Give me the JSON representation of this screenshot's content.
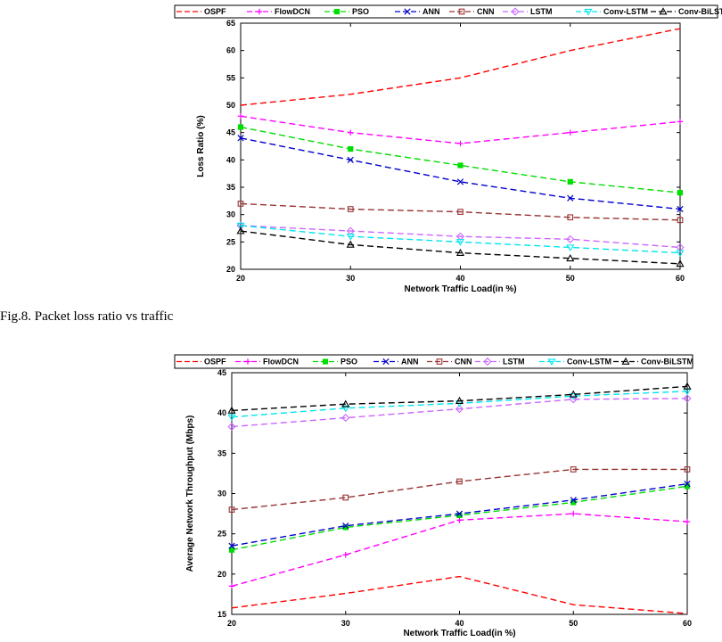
{
  "caption": "Fig.8. Packet loss ratio vs traffic",
  "series_styles": [
    {
      "name": "OSPF",
      "color": "#ff0000",
      "marker": "none"
    },
    {
      "name": "FlowDCN",
      "color": "#ff00ff",
      "marker": "plus"
    },
    {
      "name": "PSO",
      "color": "#00dd00",
      "marker": "square-filled"
    },
    {
      "name": "ANN",
      "color": "#0000cc",
      "marker": "x"
    },
    {
      "name": "CNN",
      "color": "#993333",
      "marker": "square"
    },
    {
      "name": "LSTM",
      "color": "#cc66ff",
      "marker": "diamond"
    },
    {
      "name": "Conv-LSTM",
      "color": "#00e5ee",
      "marker": "triangle-down"
    },
    {
      "name": "Conv-BiLSTM",
      "color": "#000000",
      "marker": "triangle"
    }
  ],
  "chart_data": [
    {
      "type": "line",
      "title": "",
      "xlabel": "Network Traffic Load(in %)",
      "ylabel": "Loss Ratio (%)",
      "x": [
        20,
        30,
        40,
        50,
        60
      ],
      "xlim": [
        20,
        60
      ],
      "ylim": [
        20,
        65
      ],
      "xticks": [
        "20",
        "30",
        "40",
        "50",
        "60"
      ],
      "yticks": [
        "20",
        "25",
        "30",
        "35",
        "40",
        "45",
        "50",
        "55",
        "60",
        "65"
      ],
      "ytick_values": [
        20,
        25,
        30,
        35,
        40,
        45,
        50,
        55,
        60,
        65
      ],
      "grid": false,
      "legend": "top",
      "series": [
        {
          "name": "OSPF",
          "values": [
            50,
            52,
            55,
            60,
            64
          ]
        },
        {
          "name": "FlowDCN",
          "values": [
            48,
            45,
            43,
            45,
            47
          ]
        },
        {
          "name": "PSO",
          "values": [
            46,
            42,
            39,
            36,
            34
          ]
        },
        {
          "name": "ANN",
          "values": [
            44,
            40,
            36,
            33,
            31
          ]
        },
        {
          "name": "CNN",
          "values": [
            32,
            31,
            30.5,
            29.5,
            29
          ]
        },
        {
          "name": "LSTM",
          "values": [
            28,
            27,
            26,
            25.5,
            24
          ]
        },
        {
          "name": "Conv-LSTM",
          "values": [
            28,
            26,
            25,
            24,
            23
          ]
        },
        {
          "name": "Conv-BiLSTM",
          "values": [
            27,
            24.5,
            23,
            22,
            21
          ]
        }
      ]
    },
    {
      "type": "line",
      "title": "",
      "xlabel": "Network Traffic Load(in %)",
      "ylabel": "Average Network Throughput (Mbps)",
      "x": [
        20,
        30,
        40,
        50,
        60
      ],
      "xlim": [
        20,
        60
      ],
      "ylim": [
        15,
        45
      ],
      "xticks": [
        "20",
        "30",
        "40",
        "50",
        "60"
      ],
      "yticks": [
        "15",
        "20",
        "25",
        "30",
        "35",
        "40",
        "45"
      ],
      "ytick_values": [
        15,
        20,
        25,
        30,
        35,
        40,
        45
      ],
      "grid": false,
      "legend": "top",
      "series": [
        {
          "name": "OSPF",
          "values": [
            15.8,
            17.6,
            19.7,
            16.2,
            15.1
          ]
        },
        {
          "name": "FlowDCN",
          "values": [
            18.5,
            22.4,
            26.7,
            27.5,
            26.5
          ]
        },
        {
          "name": "PSO",
          "values": [
            23.0,
            25.8,
            27.3,
            28.9,
            30.9
          ]
        },
        {
          "name": "ANN",
          "values": [
            23.5,
            26.0,
            27.5,
            29.2,
            31.2
          ]
        },
        {
          "name": "CNN",
          "values": [
            28.0,
            29.5,
            31.5,
            33.0,
            33.0
          ]
        },
        {
          "name": "LSTM",
          "values": [
            38.3,
            39.4,
            40.5,
            41.7,
            41.8
          ]
        },
        {
          "name": "Conv-LSTM",
          "values": [
            39.5,
            40.6,
            41.2,
            42.1,
            42.7
          ]
        },
        {
          "name": "Conv-BiLSTM",
          "values": [
            40.3,
            41.1,
            41.5,
            42.3,
            43.3
          ]
        }
      ]
    }
  ]
}
